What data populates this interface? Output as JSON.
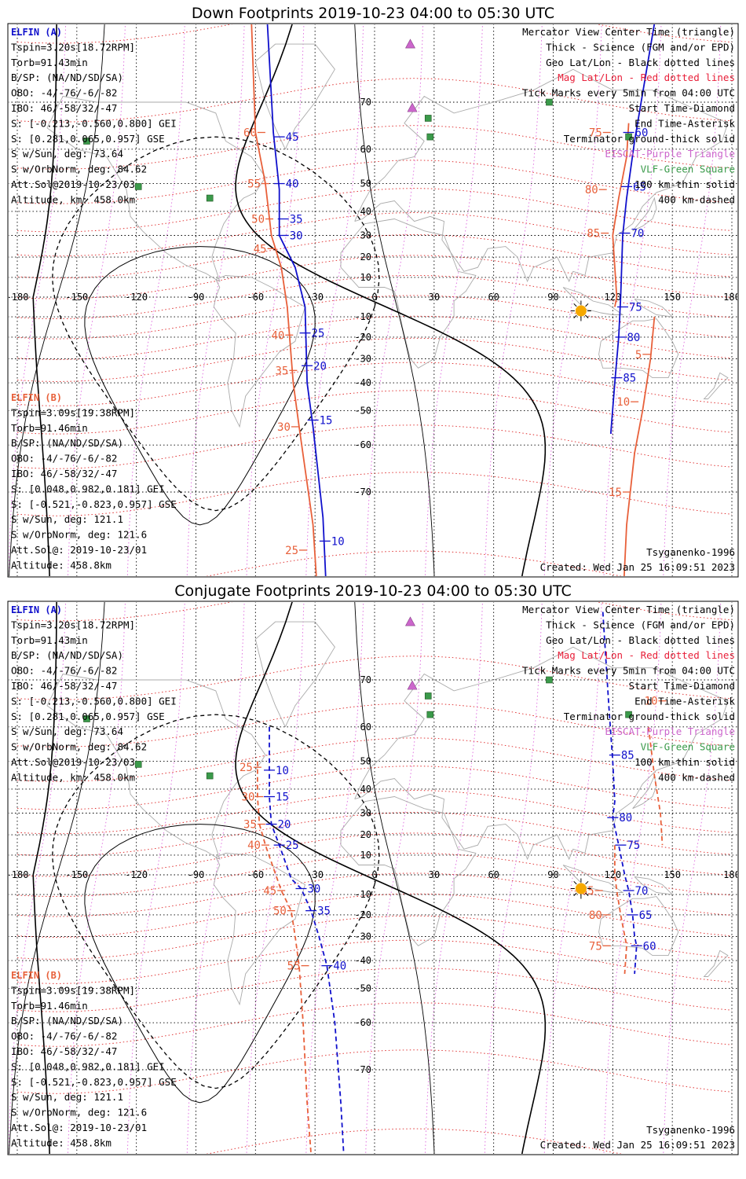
{
  "panels": [
    {
      "title": "Down Footprints 2019-10-23 04:00 to 05:30 UTC",
      "elfin_a": {
        "header": "ELFIN (A)",
        "lines": [
          "Tspin=3.20s[18.72RPM]",
          "Torb=91.43min",
          "B/SP: (NA/ND/SD/SA)",
          "OBO: -4/-76/-6/-82",
          "IBO: 46/-58/32/-47",
          "S: [-0.213,-0.560,0.800] GEI",
          "S: [0.281,0.065,0.957] GSE",
          "S w/Sun, deg: 73.64",
          "S w/OrbNorm, deg: 84.62",
          "Att.Sol@2019-10-23/03",
          "Altitude, km: 458.0km"
        ]
      },
      "elfin_b": {
        "header": "ELFIN (B)",
        "lines": [
          "Tspin=3.09s[19.38RPM]",
          "Torb=91.46min",
          "B/SP: (NA/ND/SD/SA)",
          "OBO: -4/-76/-6/-82",
          "IBO: 46/-58/32/-47",
          "S: [0.048,0.982,0.181] GEI",
          "S: [-0.521,-0.823,0.957] GSE",
          "S w/Sun, deg: 121.1",
          "S w/OrbNorm, deg: 121.6",
          "Att.Sol@: 2019-10-23/01",
          "Altitude: 458.8km"
        ]
      },
      "legend": [
        {
          "text": "Mercator View Center Time (triangle)",
          "color": "#000000"
        },
        {
          "text": "Thick - Science (FGM and/or EPD)",
          "color": "#000000"
        },
        {
          "text": "Geo Lat/Lon - Black dotted lines",
          "color": "#000000"
        },
        {
          "text": "Mag Lat/Lon - Red dotted lines",
          "color": "#e8203a"
        },
        {
          "text": "Tick Marks every 5min from 04:00 UTC",
          "color": "#000000"
        },
        {
          "text": "Start Time-Diamond",
          "color": "#000000"
        },
        {
          "text": "End Time-Asterisk",
          "color": "#000000"
        },
        {
          "text": "Terminator ground-thick solid",
          "color": "#000000"
        },
        {
          "text": "EISCAT-Purple Triangle",
          "color": "#cc66cc"
        },
        {
          "text": "VLF-Green Square",
          "color": "#3a9a4a"
        },
        {
          "text": "100 km-thin solid",
          "color": "#000000"
        },
        {
          "text": "400 km-dashed",
          "color": "#000000"
        }
      ],
      "model": "Tsyganenko-1996",
      "created": "Created: Wed Jan 25 16:09:51 2023",
      "a_ticks": [
        {
          "lon": -48,
          "lat": 63,
          "label": "45"
        },
        {
          "lon": -48,
          "lat": 50,
          "label": "40"
        },
        {
          "lon": -46,
          "lat": 37,
          "label": "35"
        },
        {
          "lon": -46,
          "lat": 30,
          "label": "30"
        },
        {
          "lon": -35,
          "lat": -18,
          "label": "25"
        },
        {
          "lon": -34,
          "lat": -33,
          "label": "20"
        },
        {
          "lon": -31,
          "lat": -53,
          "label": "15"
        },
        {
          "lon": -25,
          "lat": -77,
          "label": "10"
        },
        {
          "lon": 128,
          "lat": 64,
          "label": "60"
        },
        {
          "lon": 127,
          "lat": 49,
          "label": "65"
        },
        {
          "lon": 126,
          "lat": 31,
          "label": "70"
        },
        {
          "lon": 125,
          "lat": -5,
          "label": "75"
        },
        {
          "lon": 124,
          "lat": -20,
          "label": "80"
        },
        {
          "lon": 122,
          "lat": -38,
          "label": "85"
        }
      ],
      "b_labels": [
        {
          "lon": -57,
          "lat": 64,
          "label": "60"
        },
        {
          "lon": -55,
          "lat": 50,
          "label": "55"
        },
        {
          "lon": -53,
          "lat": 37,
          "label": "50"
        },
        {
          "lon": -52,
          "lat": 24,
          "label": "45"
        },
        {
          "lon": -43,
          "lat": -19,
          "label": "40"
        },
        {
          "lon": -41,
          "lat": -35,
          "label": "35"
        },
        {
          "lon": -40,
          "lat": -55,
          "label": "30"
        },
        {
          "lon": -36,
          "lat": -78,
          "label": "25"
        },
        {
          "lon": 117,
          "lat": 64,
          "label": "75"
        },
        {
          "lon": 115,
          "lat": 48,
          "label": "80"
        },
        {
          "lon": 116,
          "lat": 31,
          "label": "85"
        },
        {
          "lon": 137,
          "lat": -28,
          "label": "5"
        },
        {
          "lon": 131,
          "lat": -47,
          "label": "10"
        },
        {
          "lon": 127,
          "lat": -70,
          "label": "15"
        }
      ],
      "a_lines": [
        {
          "pts": [
            [
              -54,
              80
            ],
            [
              -51,
              64
            ],
            [
              -48,
              48
            ],
            [
              -48,
              30
            ],
            [
              -40,
              15
            ],
            [
              -35,
              -5
            ],
            [
              -34,
              -40
            ],
            [
              -31,
              -55
            ],
            [
              -26,
              -74
            ],
            [
              -23,
              -85
            ]
          ],
          "style": "solid"
        },
        {
          "pts": [
            [
              141,
              80
            ],
            [
              131,
              62
            ],
            [
              127,
              45
            ],
            [
              125,
              30
            ],
            [
              124,
              0
            ],
            [
              123,
              -20
            ],
            [
              121,
              -40
            ],
            [
              119,
              -57
            ]
          ],
          "style": "solid"
        }
      ],
      "b_lines": [
        {
          "pts": [
            [
              -62,
              80
            ],
            [
              -60,
              64
            ],
            [
              -55,
              50
            ],
            [
              -52,
              30
            ],
            [
              -47,
              15
            ],
            [
              -44,
              -5
            ],
            [
              -41,
              -40
            ],
            [
              -38,
              -55
            ],
            [
              -31,
              -75
            ],
            [
              -27,
              -85
            ]
          ],
          "style": "solid"
        },
        {
          "pts": [
            [
              128,
              66
            ],
            [
              127,
              58
            ],
            [
              123,
              45
            ],
            [
              120,
              30
            ],
            [
              122,
              0
            ],
            [
              121,
              -5
            ]
          ],
          "style": "solid"
        },
        {
          "pts": [
            [
              141,
              -10
            ],
            [
              139,
              -30
            ],
            [
              135,
              -50
            ],
            [
              131,
              -62
            ],
            [
              127,
              -75
            ],
            [
              124,
              -85
            ]
          ],
          "style": "solid"
        }
      ]
    },
    {
      "title": "Conjugate Footprints 2019-10-23 04:00 to 05:30 UTC",
      "elfin_a": {
        "header": "ELFIN (A)",
        "lines": [
          "Tspin=3.20s[18.72RPM]",
          "Torb=91.43min",
          "B/SP: (NA/ND/SD/SA)",
          "OBO: -4/-76/-6/-82",
          "IBO: 46/-58/32/-47",
          "S: [-0.213,-0.560,0.800] GEI",
          "S: [0.281,0.065,0.957] GSE",
          "S w/Sun, deg: 73.64",
          "S w/OrbNorm, deg: 84.62",
          "Att.Sol@2019-10-23/03",
          "Altitude, km: 458.0km"
        ]
      },
      "elfin_b": {
        "header": "ELFIN (B)",
        "lines": [
          "Tspin=3.09s[19.38RPM]",
          "Torb=91.46min",
          "B/SP: (NA/ND/SD/SA)",
          "OBO: -4/-76/-6/-82",
          "IBO: 46/-58/32/-47",
          "S: [0.048,0.982,0.181] GEI",
          "S: [-0.521,-0.823,0.957] GSE",
          "S w/Sun, deg: 121.1",
          "S w/OrbNorm, deg: 121.6",
          "Att.Sol@: 2019-10-23/01",
          "Altitude: 458.8km"
        ]
      },
      "legend": [
        {
          "text": "Mercator View Center Time (triangle)",
          "color": "#000000"
        },
        {
          "text": "Thick - Science (FGM and/or EPD)",
          "color": "#000000"
        },
        {
          "text": "Geo Lat/Lon - Black dotted lines",
          "color": "#000000"
        },
        {
          "text": "Mag Lat/Lon - Red dotted lines",
          "color": "#e8203a"
        },
        {
          "text": "Tick Marks every 5min from 04:00 UTC",
          "color": "#000000"
        },
        {
          "text": "Start Time-Diamond",
          "color": "#000000"
        },
        {
          "text": "End Time-Asterisk",
          "color": "#000000"
        },
        {
          "text": "Terminator ground-thick solid",
          "color": "#000000"
        },
        {
          "text": "EISCAT-Purple Triangle",
          "color": "#cc66cc"
        },
        {
          "text": "VLF-Green Square",
          "color": "#3a9a4a"
        },
        {
          "text": "100 km-thin solid",
          "color": "#000000"
        },
        {
          "text": "400 km-dashed",
          "color": "#000000"
        }
      ],
      "model": "Tsyganenko-1996",
      "created": "Created: Wed Jan 25 16:09:51 2023",
      "a_ticks": [
        {
          "lon": -53,
          "lat": 47,
          "label": "10"
        },
        {
          "lon": -53,
          "lat": 37,
          "label": "15"
        },
        {
          "lon": -52,
          "lat": 25,
          "label": "20"
        },
        {
          "lon": -48,
          "lat": 15,
          "label": "25"
        },
        {
          "lon": -37,
          "lat": -7,
          "label": "30"
        },
        {
          "lon": -32,
          "lat": -18,
          "label": "35"
        },
        {
          "lon": -24,
          "lat": -42,
          "label": "40"
        },
        {
          "lon": 121,
          "lat": 52,
          "label": "85"
        },
        {
          "lon": 120,
          "lat": 28,
          "label": "80"
        },
        {
          "lon": 124,
          "lat": 15,
          "label": "75"
        },
        {
          "lon": 128,
          "lat": -8,
          "label": "70"
        },
        {
          "lon": 130,
          "lat": -20,
          "label": "65"
        },
        {
          "lon": 132,
          "lat": -34,
          "label": "60"
        }
      ],
      "b_labels": [
        {
          "lon": -59,
          "lat": 48,
          "label": "25"
        },
        {
          "lon": -58,
          "lat": 37,
          "label": "30"
        },
        {
          "lon": -57,
          "lat": 25,
          "label": "35"
        },
        {
          "lon": -55,
          "lat": 15,
          "label": "40"
        },
        {
          "lon": -47,
          "lat": -8,
          "label": "45"
        },
        {
          "lon": -42,
          "lat": -18,
          "label": "50"
        },
        {
          "lon": -35,
          "lat": -42,
          "label": "55"
        },
        {
          "lon": 145,
          "lat": 66,
          "label": "10"
        },
        {
          "lon": 113,
          "lat": -8,
          "label": "85"
        },
        {
          "lon": 117,
          "lat": -20,
          "label": "80"
        },
        {
          "lon": 117,
          "lat": -34,
          "label": "75"
        }
      ],
      "a_lines": [
        {
          "pts": [
            [
              -53,
              60
            ],
            [
              -53,
              47
            ],
            [
              -53,
              37
            ],
            [
              -52,
              25
            ],
            [
              -48,
              15
            ],
            [
              -42,
              -2
            ],
            [
              -37,
              -7
            ],
            [
              -32,
              -18
            ],
            [
              -28,
              -30
            ],
            [
              -24,
              -42
            ],
            [
              -20,
              -60
            ],
            [
              -17,
              -75
            ],
            [
              -15,
              -82
            ]
          ],
          "style": "dashed"
        },
        {
          "pts": [
            [
              115,
              79
            ],
            [
              118,
              65
            ],
            [
              120,
              50
            ],
            [
              121,
              35
            ],
            [
              120,
              28
            ],
            [
              123,
              15
            ],
            [
              126,
              0
            ],
            [
              128,
              -8
            ],
            [
              130,
              -20
            ],
            [
              131,
              -30
            ],
            [
              132,
              -34
            ],
            [
              131,
              -45
            ]
          ],
          "style": "dashed"
        }
      ],
      "b_lines": [
        {
          "pts": [
            [
              -59,
              50
            ],
            [
              -59,
              37
            ],
            [
              -58,
              25
            ],
            [
              -55,
              15
            ],
            [
              -47,
              -8
            ],
            [
              -42,
              -18
            ],
            [
              -40,
              -30
            ],
            [
              -38,
              -42
            ],
            [
              -36,
              -60
            ],
            [
              -34,
              -75
            ],
            [
              -30,
              -84
            ]
          ],
          "style": "dashed"
        },
        {
          "pts": [
            [
              138,
              60
            ],
            [
              141,
              45
            ],
            [
              144,
              30
            ],
            [
              145,
              15
            ]
          ],
          "style": "dashed"
        },
        {
          "pts": [
            [
              121,
              15
            ],
            [
              121,
              0
            ],
            [
              122,
              -8
            ],
            [
              124,
              -20
            ],
            [
              127,
              -34
            ],
            [
              126,
              -45
            ]
          ],
          "style": "dashed"
        }
      ]
    }
  ],
  "map": {
    "lon_ticks": [
      -180,
      -150,
      -120,
      -90,
      -60,
      -30,
      0,
      30,
      60,
      90,
      120,
      150,
      180
    ],
    "lon_tick_labels": [
      "-180",
      "-150",
      "-120",
      "-90",
      "-60",
      "-30",
      "0",
      "30",
      "60",
      "90",
      "120",
      "150",
      "180"
    ],
    "lat_ticks": [
      70,
      60,
      50,
      40,
      30,
      20,
      10,
      0,
      -10,
      -20,
      -30,
      -40,
      -50,
      -60,
      -70
    ],
    "lat_tick_labels": [
      "70",
      "60",
      "50",
      "40",
      "30",
      "20",
      "10",
      "0",
      "-10",
      "-20",
      "-30",
      "-40",
      "-50",
      "-60",
      "-70"
    ],
    "eiscat": [
      {
        "lon": 18,
        "lat": 78
      },
      {
        "lon": 19,
        "lat": 69
      }
    ],
    "vlf": [
      {
        "lon": -145,
        "lat": 62
      },
      {
        "lon": -119,
        "lat": 49
      },
      {
        "lon": -83,
        "lat": 45
      },
      {
        "lon": 27,
        "lat": 67
      },
      {
        "lon": 28,
        "lat": 63
      },
      {
        "lon": 88,
        "lat": 70
      },
      {
        "lon": 128,
        "lat": 63
      }
    ],
    "sun": {
      "lon": 104,
      "lat": -7
    },
    "colors": {
      "a": "#1010cc",
      "b": "#e8603a",
      "mag": "#dd2222",
      "eiscat": "#cc66cc",
      "vlf": "#3a9a4a",
      "sun": "#f6a800",
      "coast": "#aaaaaa"
    }
  }
}
